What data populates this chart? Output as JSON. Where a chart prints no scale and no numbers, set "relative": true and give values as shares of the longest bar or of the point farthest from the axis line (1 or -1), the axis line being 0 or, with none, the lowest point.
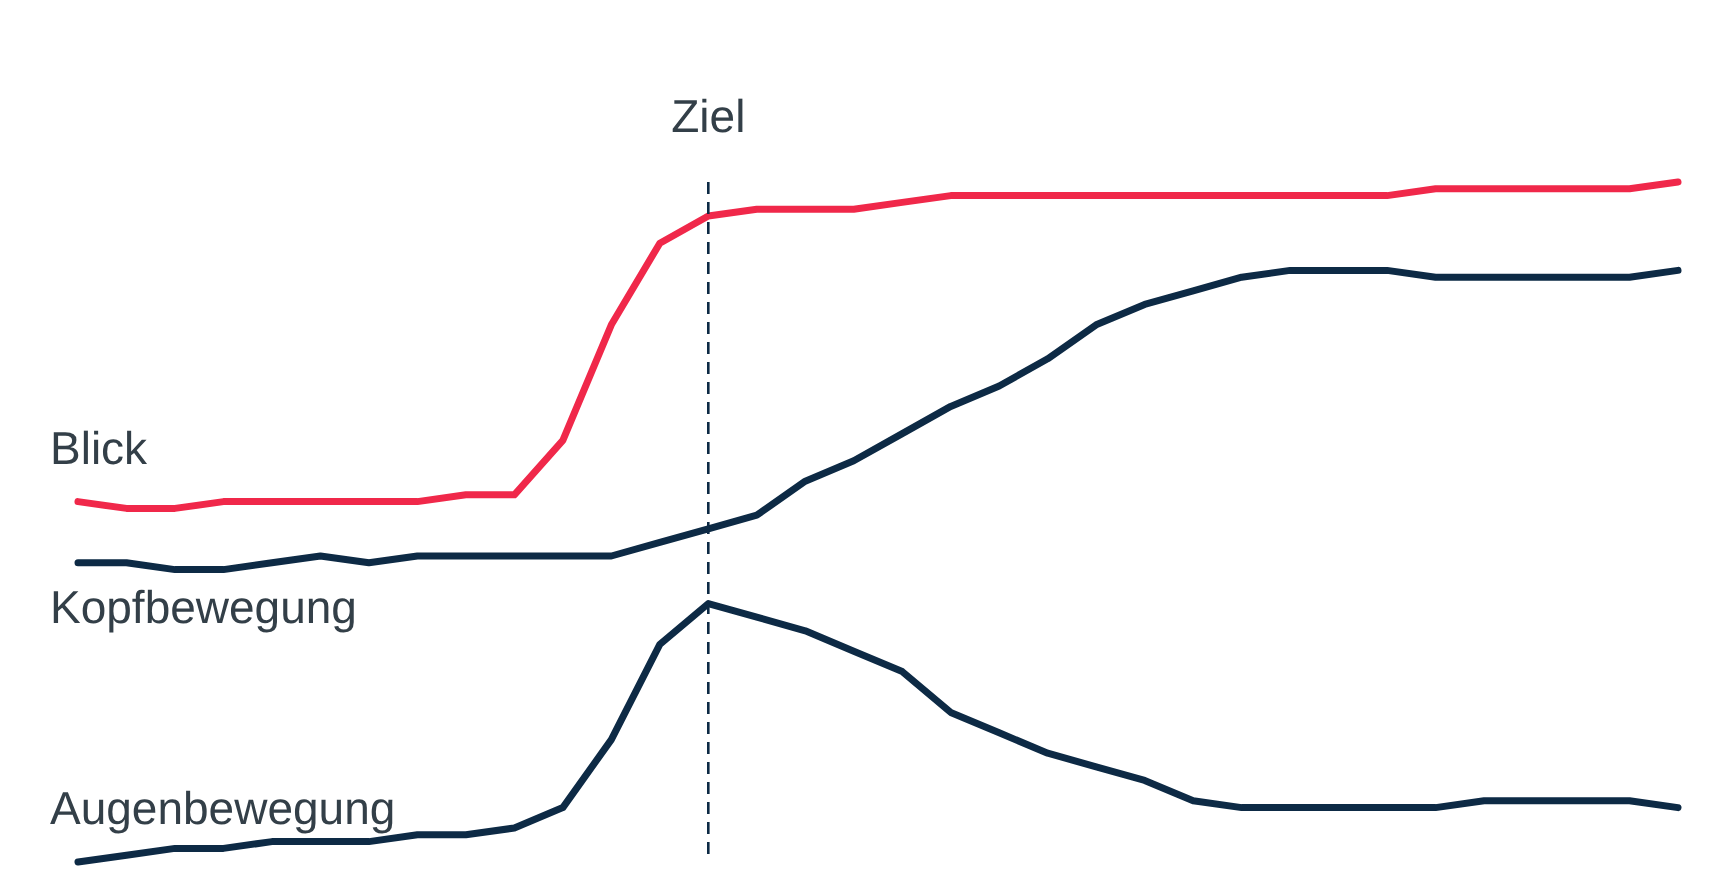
{
  "chart_data": {
    "type": "line",
    "relative": true,
    "marker": "none",
    "line_style": "solid",
    "categories": [
      null,
      null,
      null,
      null,
      null,
      null,
      null,
      null,
      null,
      null,
      null,
      null,
      null,
      null,
      null,
      null,
      null,
      null,
      null,
      null,
      null,
      null,
      null,
      null,
      null,
      null,
      null,
      null,
      null,
      null,
      null,
      null,
      null,
      null
    ],
    "series": [
      {
        "name": "Blick",
        "color": "#f0284a",
        "values": [
          0.53,
          0.52,
          0.52,
          0.53,
          0.53,
          0.53,
          0.53,
          0.53,
          0.54,
          0.54,
          0.62,
          0.79,
          0.91,
          0.95,
          0.96,
          0.96,
          0.96,
          0.97,
          0.98,
          0.98,
          0.98,
          0.98,
          0.98,
          0.98,
          0.98,
          0.98,
          0.98,
          0.98,
          0.99,
          0.99,
          0.99,
          0.99,
          0.99,
          1.0
        ]
      },
      {
        "name": "Kopfbewegung",
        "color": "#0d2a45",
        "values": [
          0.44,
          0.44,
          0.43,
          0.43,
          0.44,
          0.45,
          0.44,
          0.45,
          0.45,
          0.45,
          0.45,
          0.45,
          0.47,
          0.49,
          0.51,
          0.56,
          0.59,
          0.63,
          0.67,
          0.7,
          0.74,
          0.79,
          0.82,
          0.84,
          0.86,
          0.87,
          0.87,
          0.87,
          0.86,
          0.86,
          0.86,
          0.86,
          0.86,
          0.87
        ]
      },
      {
        "name": "Augenbewegung",
        "color": "#0d2a45",
        "values": [
          0,
          0.01,
          0.02,
          0.02,
          0.03,
          0.03,
          0.03,
          0.04,
          0.04,
          0.05,
          0.08,
          0.18,
          0.32,
          0.38,
          0.36,
          0.34,
          0.31,
          0.28,
          0.22,
          0.19,
          0.16,
          0.14,
          0.12,
          0.09,
          0.08,
          0.08,
          0.08,
          0.08,
          0.08,
          0.09,
          0.09,
          0.09,
          0.09,
          0.08
        ]
      }
    ],
    "annotations": [
      "Ziel"
    ]
  }
}
